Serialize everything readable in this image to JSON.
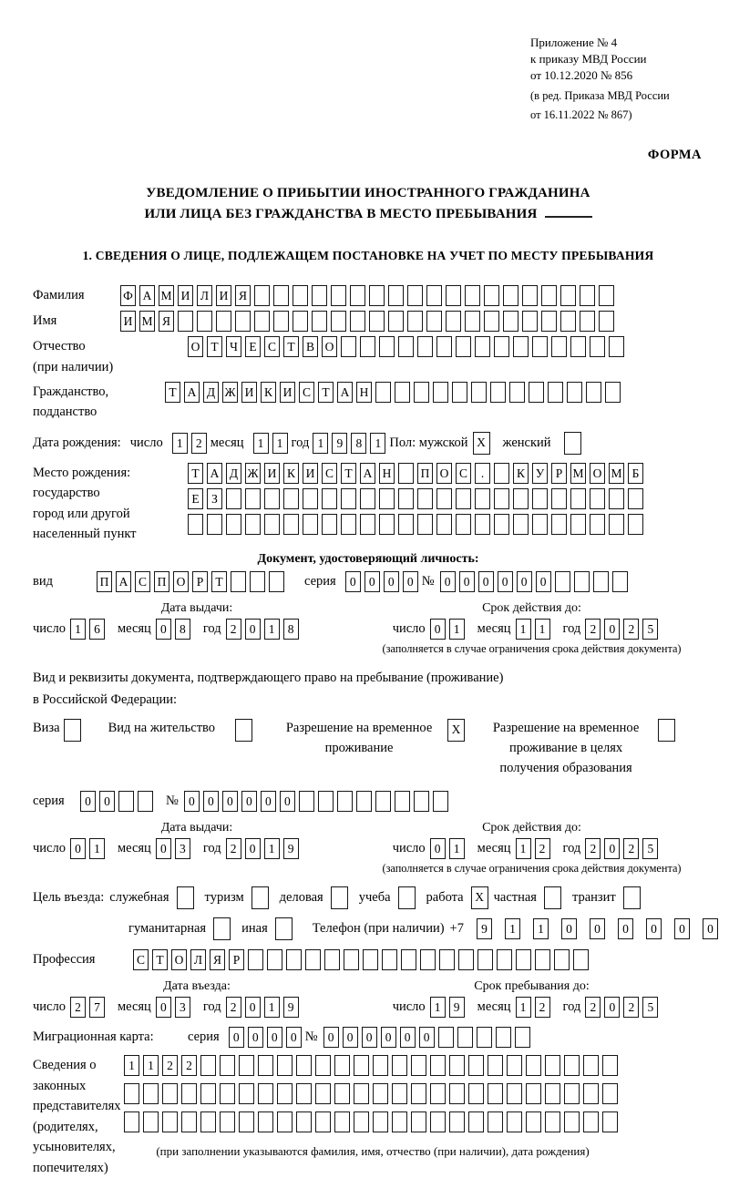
{
  "header": {
    "appendix_lines": [
      "Приложение № 4",
      "к приказу МВД России",
      "от 10.12.2020 № 856"
    ],
    "edition_lines": [
      "(в ред. Приказа МВД России",
      "от 16.11.2022 № 867)"
    ],
    "form_label": "ФОРМА"
  },
  "title": {
    "line1": "УВЕДОМЛЕНИЕ О ПРИБЫТИИ ИНОСТРАННОГО ГРАЖДАНИНА",
    "line2": "ИЛИ ЛИЦА БЕЗ ГРАЖДАНСТВА В МЕСТО ПРЕБЫВАНИЯ"
  },
  "section1_heading": "1. СВЕДЕНИЯ О ЛИЦЕ, ПОДЛЕЖАЩЕМ ПОСТАНОВКЕ НА УЧЕТ ПО МЕСТУ ПРЕБЫВАНИЯ",
  "labels": {
    "surname": "Фамилия",
    "name": "Имя",
    "patronymic_1": "Отчество",
    "patronymic_2": "(при наличии)",
    "citizenship_1": "Гражданство,",
    "citizenship_2": "подданство",
    "birth_date": "Дата рождения:",
    "day": "число",
    "month": "месяц",
    "year": "год",
    "sex_male": "Пол: мужской",
    "sex_female": "женский",
    "birth_place_1": "Место рождения:",
    "birth_place_2": "государство",
    "birth_place_3": "город или другой",
    "birth_place_4": "населенный пункт",
    "identity_doc_heading": "Документ, удостоверяющий личность:",
    "doc_type": "вид",
    "series": "серия",
    "number_sign": "№",
    "issue_date": "Дата выдачи:",
    "validity": "Срок действия до:",
    "validity_note": "(заполняется в случае ограничения срока действия документа)",
    "right_doc_1": "Вид и реквизиты документа, подтверждающего право на пребывание (проживание)",
    "right_doc_2": "в Российской Федерации:",
    "visa": "Виза",
    "residence_permit": "Вид на жительство",
    "temp_residence": "Разрешение на временное проживание",
    "temp_residence_edu": "Разрешение на временное проживание в целях получения образования",
    "purpose": "Цель въезда:",
    "official": "служебная",
    "tourism": "туризм",
    "business": "деловая",
    "study": "учеба",
    "work": "работа",
    "private": "частная",
    "transit": "транзит",
    "humanitarian": "гуманитарная",
    "other": "иная",
    "phone": "Телефон (при наличии)",
    "phone_prefix": "+7",
    "profession": "Профессия",
    "entry_date": "Дата въезда:",
    "stay_until": "Срок пребывания до:",
    "migration_card": "Миграционная карта:",
    "representatives_1": "Сведения о",
    "representatives_2": "законных",
    "representatives_3": "представителях",
    "representatives_4": "(родителях,",
    "representatives_5": "усыновителях,",
    "representatives_6": "попечителях)",
    "representatives_note": "(при заполнении указываются фамилия, имя, отчество (при наличии), дата рождения)"
  },
  "person": {
    "surname_cells": [
      "Ф",
      "А",
      "М",
      "И",
      "Л",
      "И",
      "Я",
      "",
      "",
      "",
      "",
      "",
      "",
      "",
      "",
      "",
      "",
      "",
      "",
      "",
      "",
      "",
      "",
      "",
      "",
      ""
    ],
    "name_cells": [
      "И",
      "М",
      "Я",
      "",
      "",
      "",
      "",
      "",
      "",
      "",
      "",
      "",
      "",
      "",
      "",
      "",
      "",
      "",
      "",
      "",
      "",
      "",
      "",
      "",
      "",
      ""
    ],
    "patronymic_cells": [
      "О",
      "Т",
      "Ч",
      "Е",
      "С",
      "Т",
      "В",
      "О",
      "",
      "",
      "",
      "",
      "",
      "",
      "",
      "",
      "",
      "",
      "",
      "",
      "",
      "",
      ""
    ],
    "citizenship_cells": [
      "Т",
      "А",
      "Д",
      "Ж",
      "И",
      "К",
      "И",
      "С",
      "Т",
      "А",
      "Н",
      "",
      "",
      "",
      "",
      "",
      "",
      "",
      "",
      "",
      "",
      "",
      "",
      ""
    ],
    "birth": {
      "day": [
        "1",
        "2"
      ],
      "month": [
        "1",
        "1"
      ],
      "year": [
        "1",
        "9",
        "8",
        "1"
      ]
    },
    "sex_male_value": "X",
    "sex_female_value": "",
    "birth_place_row1": [
      "Т",
      "А",
      "Д",
      "Ж",
      "И",
      "К",
      "И",
      "С",
      "Т",
      "А",
      "Н",
      "",
      "П",
      "О",
      "С",
      ".",
      "",
      "К",
      "У",
      "Р",
      "М",
      "О",
      "М",
      "Б"
    ],
    "birth_place_row2": [
      "Е",
      "З",
      "",
      "",
      "",
      "",
      "",
      "",
      "",
      "",
      "",
      "",
      "",
      "",
      "",
      "",
      "",
      "",
      "",
      "",
      "",
      "",
      "",
      ""
    ],
    "birth_place_row3": [
      "",
      "",
      "",
      "",
      "",
      "",
      "",
      "",
      "",
      "",
      "",
      "",
      "",
      "",
      "",
      "",
      "",
      "",
      "",
      "",
      "",
      "",
      "",
      ""
    ]
  },
  "identity_doc": {
    "type_cells": [
      "П",
      "А",
      "С",
      "П",
      "О",
      "Р",
      "Т",
      "",
      "",
      ""
    ],
    "series_cells": [
      "0",
      "0",
      "0",
      "0"
    ],
    "number_cells": [
      "0",
      "0",
      "0",
      "0",
      "0",
      "0",
      "",
      "",
      "",
      ""
    ],
    "issue": {
      "day": [
        "1",
        "6"
      ],
      "month": [
        "0",
        "8"
      ],
      "year": [
        "2",
        "0",
        "1",
        "8"
      ]
    },
    "expiry": {
      "day": [
        "0",
        "1"
      ],
      "month": [
        "1",
        "1"
      ],
      "year": [
        "2",
        "0",
        "2",
        "5"
      ]
    }
  },
  "residence_doc": {
    "visa_value": "",
    "residence_permit_value": "",
    "temp_residence_value": "X",
    "temp_residence_edu_value": "",
    "series_cells": [
      "0",
      "0",
      "",
      ""
    ],
    "number_cells": [
      "0",
      "0",
      "0",
      "0",
      "0",
      "0",
      "",
      "",
      "",
      "",
      "",
      "",
      "",
      ""
    ],
    "issue": {
      "day": [
        "0",
        "1"
      ],
      "month": [
        "0",
        "3"
      ],
      "year": [
        "2",
        "0",
        "1",
        "9"
      ]
    },
    "expiry": {
      "day": [
        "0",
        "1"
      ],
      "month": [
        "1",
        "2"
      ],
      "year": [
        "2",
        "0",
        "2",
        "5"
      ]
    }
  },
  "entry": {
    "purpose": {
      "official": "",
      "tourism": "",
      "business": "",
      "study": "",
      "work": "X",
      "private": "",
      "transit": "",
      "humanitarian": "",
      "other": ""
    },
    "phone_cells": [
      "9",
      "1",
      "1",
      "0",
      "0",
      "0",
      "0",
      "0",
      "0",
      ""
    ]
  },
  "profession_cells": [
    "С",
    "Т",
    "О",
    "Л",
    "Я",
    "Р",
    "",
    "",
    "",
    "",
    "",
    "",
    "",
    "",
    "",
    "",
    "",
    "",
    "",
    "",
    "",
    "",
    "",
    ""
  ],
  "entry_date": {
    "day": [
      "2",
      "7"
    ],
    "month": [
      "0",
      "3"
    ],
    "year": [
      "2",
      "0",
      "1",
      "9"
    ]
  },
  "stay_until": {
    "day": [
      "1",
      "9"
    ],
    "month": [
      "1",
      "2"
    ],
    "year": [
      "2",
      "0",
      "2",
      "5"
    ]
  },
  "migration_card": {
    "series_cells": [
      "0",
      "0",
      "0",
      "0"
    ],
    "number_cells": [
      "0",
      "0",
      "0",
      "0",
      "0",
      "0",
      "",
      "",
      "",
      "",
      ""
    ]
  },
  "representatives": {
    "row1": [
      "1",
      "1",
      "2",
      "2",
      "",
      "",
      "",
      "",
      "",
      "",
      "",
      "",
      "",
      "",
      "",
      "",
      "",
      "",
      "",
      "",
      "",
      "",
      "",
      "",
      "",
      ""
    ],
    "row2": [
      "",
      "",
      "",
      "",
      "",
      "",
      "",
      "",
      "",
      "",
      "",
      "",
      "",
      "",
      "",
      "",
      "",
      "",
      "",
      "",
      "",
      "",
      "",
      "",
      "",
      ""
    ],
    "row3": [
      "",
      "",
      "",
      "",
      "",
      "",
      "",
      "",
      "",
      "",
      "",
      "",
      "",
      "",
      "",
      "",
      "",
      "",
      "",
      "",
      "",
      "",
      "",
      "",
      "",
      ""
    ]
  }
}
